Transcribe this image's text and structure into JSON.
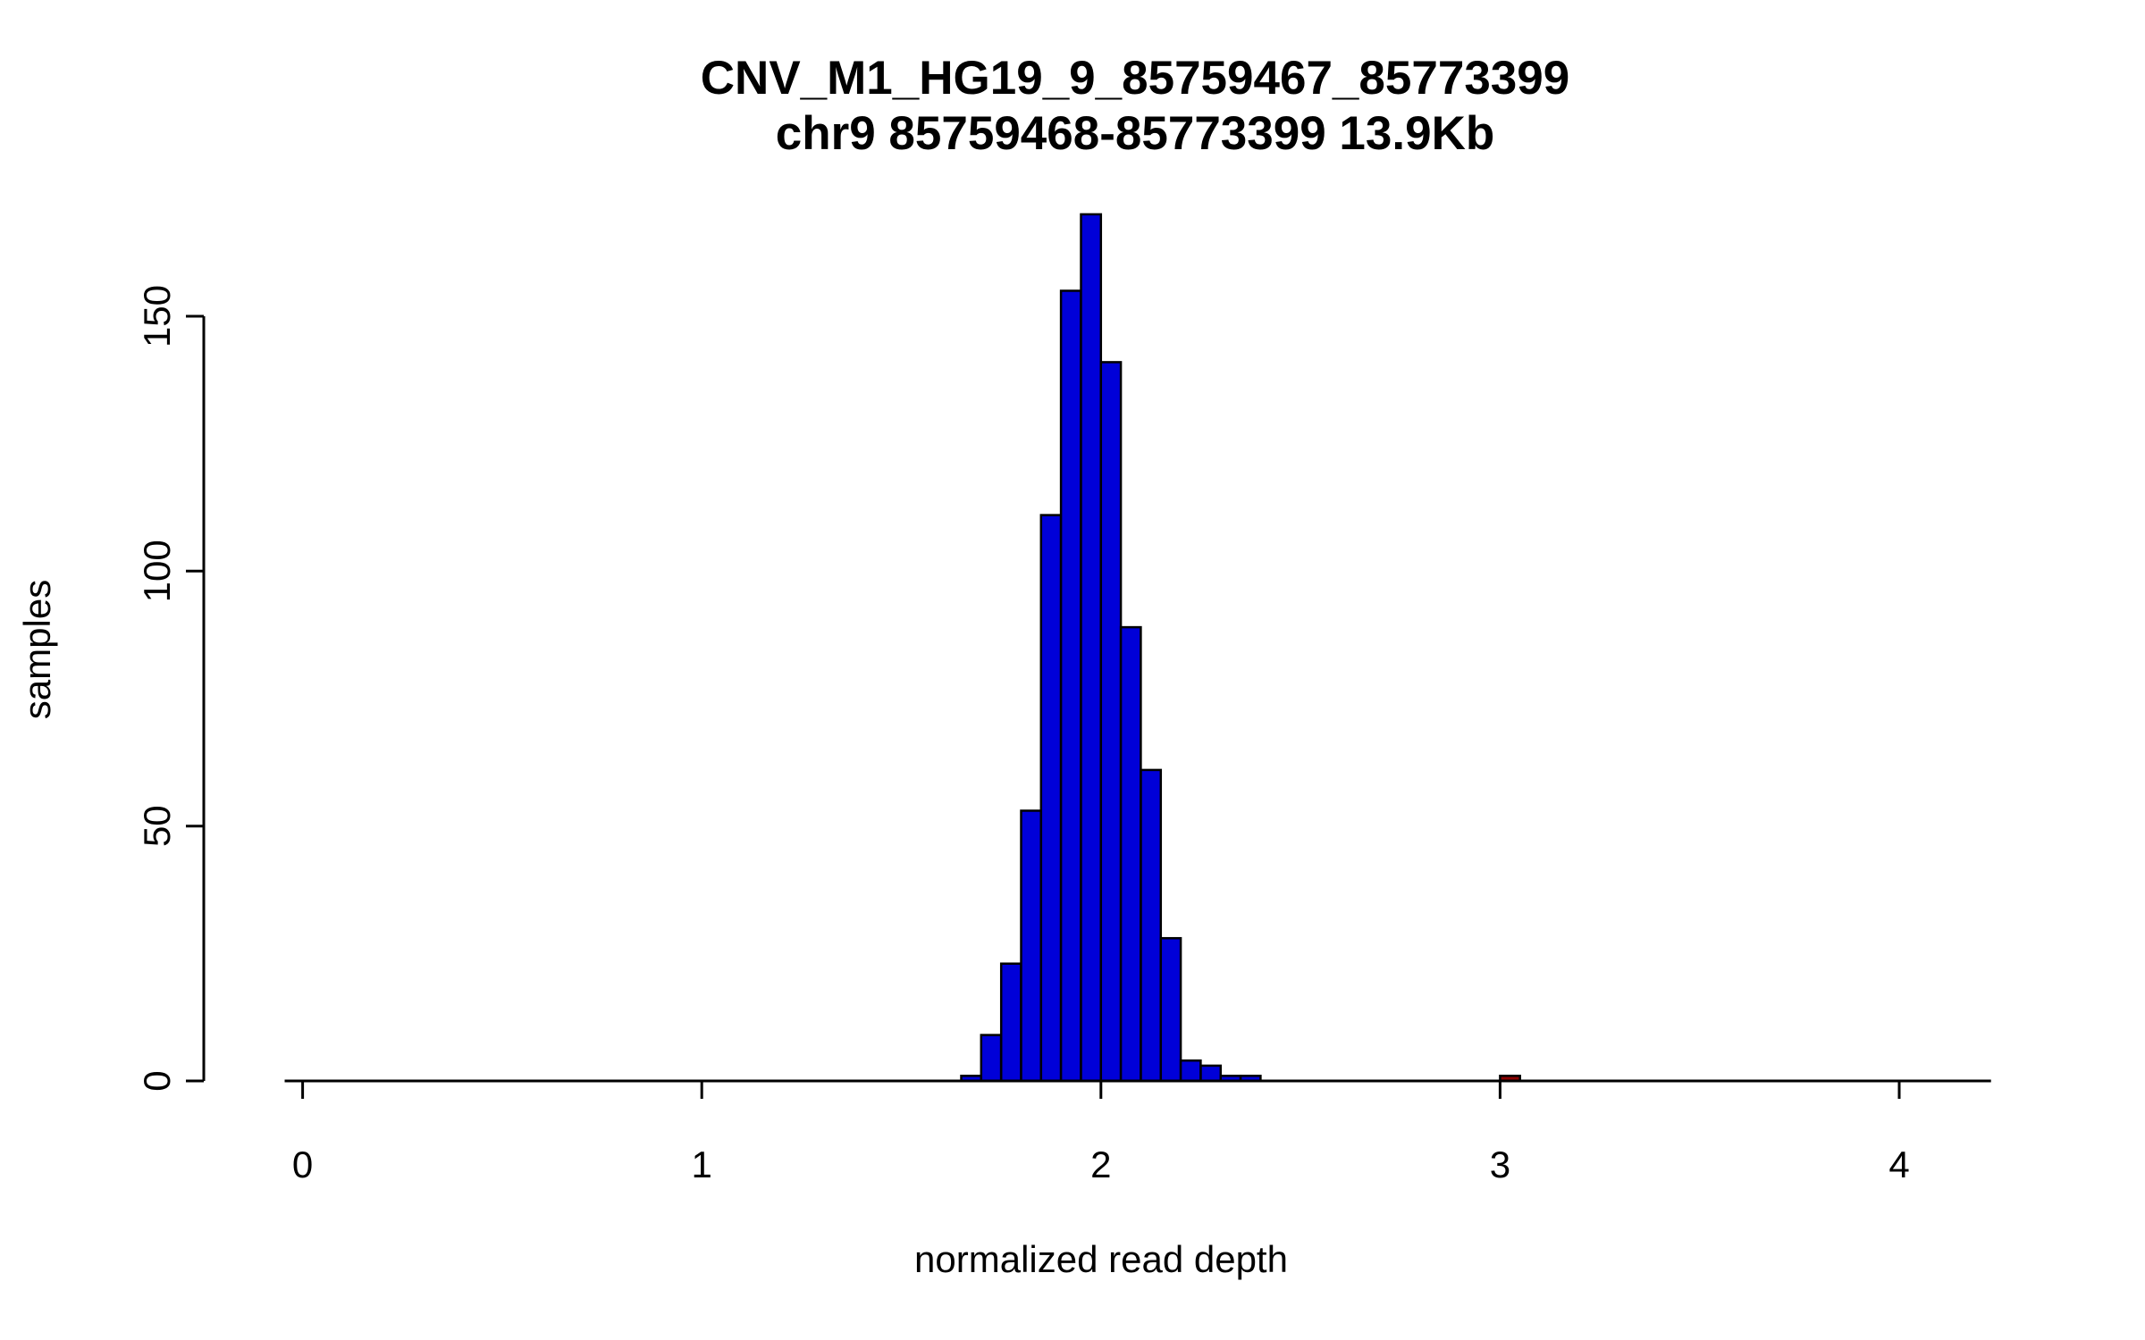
{
  "chart_data": {
    "type": "bar",
    "subtype": "histogram",
    "title": "CNV_M1_HG19_9_85759467_85773399",
    "subtitle": "chr9 85759468-85773399 13.9Kb",
    "xlabel": "normalized read depth",
    "ylabel": "samples",
    "x_ticks": [
      0,
      1,
      2,
      3,
      4
    ],
    "y_ticks": [
      0,
      50,
      100,
      150
    ],
    "xlim": [
      -0.045,
      4.23
    ],
    "ylim": [
      0,
      170
    ],
    "bin_width": 0.05,
    "bar_fill": "#0000D8",
    "bar_stroke": "#000000",
    "outlier_fill": "#8B0000",
    "grid": false,
    "legend": "none",
    "bins": [
      {
        "x0": 1.65,
        "count": 1
      },
      {
        "x0": 1.7,
        "count": 9
      },
      {
        "x0": 1.75,
        "count": 23
      },
      {
        "x0": 1.8,
        "count": 53
      },
      {
        "x0": 1.85,
        "count": 111
      },
      {
        "x0": 1.9,
        "count": 155
      },
      {
        "x0": 1.95,
        "count": 170
      },
      {
        "x0": 2.0,
        "count": 141
      },
      {
        "x0": 2.05,
        "count": 89
      },
      {
        "x0": 2.1,
        "count": 61
      },
      {
        "x0": 2.15,
        "count": 28
      },
      {
        "x0": 2.2,
        "count": 4
      },
      {
        "x0": 2.25,
        "count": 3
      },
      {
        "x0": 2.3,
        "count": 1
      },
      {
        "x0": 2.35,
        "count": 1
      },
      {
        "x0": 3.0,
        "count": 1,
        "color": "#8B0000"
      }
    ]
  }
}
